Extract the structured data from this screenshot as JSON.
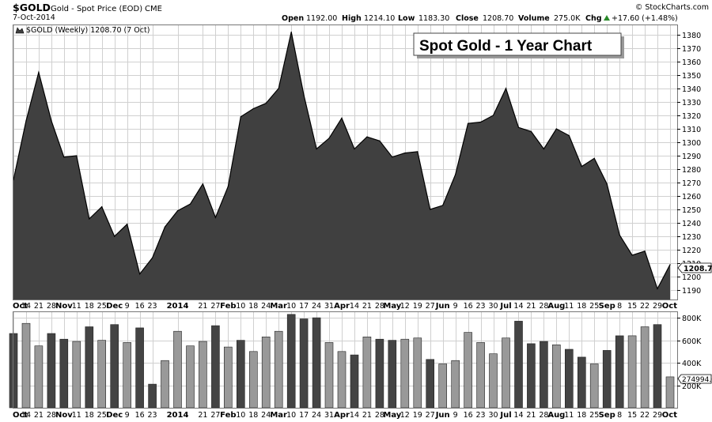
{
  "header": {
    "symbol": "$GOLD",
    "description": "Gold - Spot Price (EOD)",
    "exchange": "CME",
    "date": "7-Oct-2014",
    "watermark": "© StockCharts.com",
    "open_label": "Open",
    "open_value": "1192.00",
    "high_label": "High",
    "high_value": "1214.10",
    "low_label": "Low",
    "low_value": "1183.30",
    "close_label": "Close",
    "close_value": "1208.70",
    "volume_label": "Volume",
    "volume_value": "275.0K",
    "chg_label": "Chg",
    "chg_value": "+17.60 (+1.48%)",
    "chg_arrow_icon": "up-triangle-icon"
  },
  "legend": {
    "text": "$GOLD (Weekly) 1208.70 (7 Oct)",
    "swatch_icon": "area-swatch-icon"
  },
  "callout": "Spot Gold - 1 Year Chart",
  "price_label": "1208.70",
  "volume_label": "274994.0",
  "colors": {
    "area_fill": "#404040",
    "area_line": "#000000",
    "volume_up": "#999999",
    "volume_down": "#444444",
    "grid": "#d0d0d0"
  },
  "chart_data": [
    {
      "type": "area",
      "x": [
        "2013-10-07",
        "2013-10-14",
        "2013-10-21",
        "2013-10-28",
        "2013-11-04",
        "2013-11-11",
        "2013-11-18",
        "2013-11-25",
        "2013-12-02",
        "2013-12-09",
        "2013-12-16",
        "2013-12-23",
        "2013-12-30",
        "2014-01-06",
        "2014-01-13",
        "2014-01-20",
        "2014-01-27",
        "2014-02-03",
        "2014-02-10",
        "2014-02-17",
        "2014-02-24",
        "2014-03-03",
        "2014-03-10",
        "2014-03-17",
        "2014-03-24",
        "2014-03-31",
        "2014-04-07",
        "2014-04-14",
        "2014-04-21",
        "2014-04-28",
        "2014-05-05",
        "2014-05-12",
        "2014-05-19",
        "2014-05-26",
        "2014-06-02",
        "2014-06-09",
        "2014-06-16",
        "2014-06-23",
        "2014-06-30",
        "2014-07-07",
        "2014-07-14",
        "2014-07-21",
        "2014-07-28",
        "2014-08-04",
        "2014-08-11",
        "2014-08-18",
        "2014-08-25",
        "2014-09-01",
        "2014-09-08",
        "2014-09-15",
        "2014-09-22",
        "2014-09-29",
        "2014-10-06"
      ],
      "series": [
        {
          "name": "$GOLD (Weekly)",
          "values": [
            1272,
            1316,
            1352,
            1316,
            1289,
            1290,
            1243,
            1252,
            1230,
            1239,
            1202,
            1214,
            1237,
            1249,
            1254,
            1269,
            1244,
            1267,
            1319,
            1325,
            1329,
            1340,
            1382,
            1335,
            1295,
            1303,
            1318,
            1295,
            1304,
            1301,
            1289,
            1292,
            1293,
            1250,
            1253,
            1276,
            1314,
            1315,
            1320,
            1340,
            1311,
            1308,
            1295,
            1310,
            1305,
            1282,
            1288,
            1269,
            1231,
            1216,
            1219,
            1191,
            1209
          ]
        }
      ],
      "ylim": [
        1183,
        1387
      ],
      "y_ticks": [
        1190,
        1200,
        1210,
        1220,
        1230,
        1240,
        1250,
        1260,
        1270,
        1280,
        1290,
        1300,
        1310,
        1320,
        1330,
        1340,
        1350,
        1360,
        1370,
        1380
      ],
      "grid": true
    },
    {
      "type": "bar",
      "x": [
        "2013-10-07",
        "2013-10-14",
        "2013-10-21",
        "2013-10-28",
        "2013-11-04",
        "2013-11-11",
        "2013-11-18",
        "2013-11-25",
        "2013-12-02",
        "2013-12-09",
        "2013-12-16",
        "2013-12-23",
        "2013-12-30",
        "2014-01-06",
        "2014-01-13",
        "2014-01-20",
        "2014-01-27",
        "2014-02-03",
        "2014-02-10",
        "2014-02-17",
        "2014-02-24",
        "2014-03-03",
        "2014-03-10",
        "2014-03-17",
        "2014-03-24",
        "2014-03-31",
        "2014-04-07",
        "2014-04-14",
        "2014-04-21",
        "2014-04-28",
        "2014-05-05",
        "2014-05-12",
        "2014-05-19",
        "2014-05-26",
        "2014-06-02",
        "2014-06-09",
        "2014-06-16",
        "2014-06-23",
        "2014-06-30",
        "2014-07-07",
        "2014-07-14",
        "2014-07-21",
        "2014-07-28",
        "2014-08-04",
        "2014-08-11",
        "2014-08-18",
        "2014-08-25",
        "2014-09-01",
        "2014-09-08",
        "2014-09-15",
        "2014-09-22",
        "2014-09-29",
        "2014-10-06"
      ],
      "series": [
        {
          "name": "Volume",
          "values": [
            660000,
            750000,
            550000,
            660000,
            610000,
            590000,
            720000,
            600000,
            740000,
            580000,
            710000,
            210000,
            420000,
            680000,
            550000,
            590000,
            730000,
            540000,
            600000,
            500000,
            630000,
            680000,
            830000,
            790000,
            800000,
            580000,
            500000,
            470000,
            630000,
            610000,
            600000,
            610000,
            620000,
            430000,
            390000,
            420000,
            670000,
            580000,
            480000,
            620000,
            770000,
            570000,
            590000,
            560000,
            520000,
            450000,
            390000,
            510000,
            640000,
            640000,
            720000,
            740000,
            274994
          ],
          "down_flags": [
            1,
            0,
            0,
            1,
            1,
            0,
            1,
            0,
            1,
            0,
            1,
            1,
            0,
            0,
            0,
            0,
            1,
            0,
            1,
            0,
            0,
            0,
            1,
            1,
            1,
            0,
            0,
            1,
            0,
            1,
            1,
            0,
            0,
            1,
            0,
            0,
            0,
            0,
            0,
            0,
            1,
            1,
            1,
            0,
            1,
            1,
            0,
            1,
            1,
            0,
            0,
            1,
            0
          ]
        }
      ],
      "ylim": [
        0,
        850000
      ],
      "y_ticks": [
        200000,
        400000,
        600000,
        800000
      ],
      "y_tick_labels": [
        "200K",
        "400K",
        "600K",
        "800K"
      ],
      "grid": true
    }
  ],
  "x_axis_labels": [
    {
      "text": "Oct",
      "bold": true,
      "week": 0
    },
    {
      "text": "14",
      "bold": false,
      "week": 1
    },
    {
      "text": "21",
      "bold": false,
      "week": 2
    },
    {
      "text": "28",
      "bold": false,
      "week": 3
    },
    {
      "text": "Nov",
      "bold": true,
      "week": 4
    },
    {
      "text": "11",
      "bold": false,
      "week": 5
    },
    {
      "text": "18",
      "bold": false,
      "week": 6
    },
    {
      "text": "25",
      "bold": false,
      "week": 7
    },
    {
      "text": "Dec",
      "bold": true,
      "week": 8
    },
    {
      "text": "9",
      "bold": false,
      "week": 9
    },
    {
      "text": "16",
      "bold": false,
      "week": 10
    },
    {
      "text": "23",
      "bold": false,
      "week": 11
    },
    {
      "text": "2014",
      "bold": true,
      "week": 13
    },
    {
      "text": "21",
      "bold": false,
      "week": 15
    },
    {
      "text": "27",
      "bold": false,
      "week": 16
    },
    {
      "text": "Feb",
      "bold": true,
      "week": 17
    },
    {
      "text": "10",
      "bold": false,
      "week": 18
    },
    {
      "text": "18",
      "bold": false,
      "week": 19
    },
    {
      "text": "24",
      "bold": false,
      "week": 20
    },
    {
      "text": "Mar",
      "bold": true,
      "week": 21
    },
    {
      "text": "10",
      "bold": false,
      "week": 22
    },
    {
      "text": "17",
      "bold": false,
      "week": 23
    },
    {
      "text": "24",
      "bold": false,
      "week": 24
    },
    {
      "text": "31",
      "bold": false,
      "week": 25
    },
    {
      "text": "Apr",
      "bold": true,
      "week": 26
    },
    {
      "text": "14",
      "bold": false,
      "week": 27
    },
    {
      "text": "21",
      "bold": false,
      "week": 28
    },
    {
      "text": "28",
      "bold": false,
      "week": 29
    },
    {
      "text": "May",
      "bold": true,
      "week": 30
    },
    {
      "text": "12",
      "bold": false,
      "week": 31
    },
    {
      "text": "19",
      "bold": false,
      "week": 32
    },
    {
      "text": "27",
      "bold": false,
      "week": 33
    },
    {
      "text": "Jun",
      "bold": true,
      "week": 34
    },
    {
      "text": "9",
      "bold": false,
      "week": 35
    },
    {
      "text": "16",
      "bold": false,
      "week": 36
    },
    {
      "text": "23",
      "bold": false,
      "week": 37
    },
    {
      "text": "30",
      "bold": false,
      "week": 38
    },
    {
      "text": "Jul",
      "bold": true,
      "week": 39
    },
    {
      "text": "14",
      "bold": false,
      "week": 40
    },
    {
      "text": "21",
      "bold": false,
      "week": 41
    },
    {
      "text": "28",
      "bold": false,
      "week": 42
    },
    {
      "text": "Aug",
      "bold": true,
      "week": 43
    },
    {
      "text": "11",
      "bold": false,
      "week": 44
    },
    {
      "text": "18",
      "bold": false,
      "week": 45
    },
    {
      "text": "25",
      "bold": false,
      "week": 46
    },
    {
      "text": "Sep",
      "bold": true,
      "week": 47
    },
    {
      "text": "8",
      "bold": false,
      "week": 48
    },
    {
      "text": "15",
      "bold": false,
      "week": 49
    },
    {
      "text": "22",
      "bold": false,
      "week": 50
    },
    {
      "text": "29",
      "bold": false,
      "week": 51
    },
    {
      "text": "Oct",
      "bold": true,
      "week": 52
    }
  ]
}
